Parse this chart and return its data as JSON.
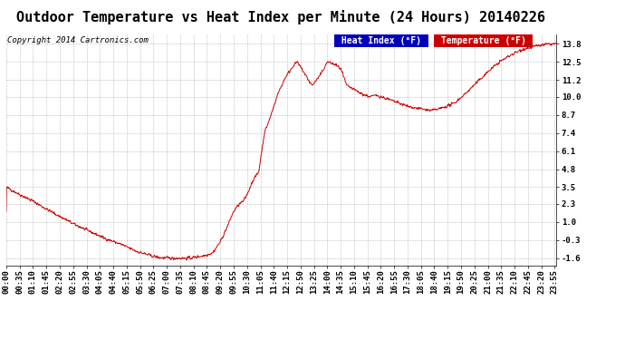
{
  "title": "Outdoor Temperature vs Heat Index per Minute (24 Hours) 20140226",
  "copyright": "Copyright 2014 Cartronics.com",
  "legend_heat_index": "Heat Index (°F)",
  "legend_temperature": "Temperature (°F)",
  "yticks": [
    13.8,
    12.5,
    11.2,
    10.0,
    8.7,
    7.4,
    6.1,
    4.8,
    3.5,
    2.3,
    1.0,
    -0.3,
    -1.6
  ],
  "ylim": [
    -2.1,
    14.5
  ],
  "background_color": "#ffffff",
  "plot_bg_color": "#ffffff",
  "grid_color": "#aaaaaa",
  "line_color": "#cc0000",
  "title_fontsize": 11,
  "copyright_fontsize": 6.5,
  "tick_fontsize": 6.5,
  "legend_fontsize": 7,
  "xtick_interval_minutes": 35,
  "total_minutes": 1440,
  "keyframes_x": [
    0,
    20,
    40,
    70,
    100,
    140,
    180,
    220,
    260,
    300,
    340,
    370,
    390,
    400,
    415,
    430,
    450,
    460,
    470,
    480,
    490,
    500,
    510,
    520,
    530,
    540,
    550,
    560,
    570,
    580,
    590,
    600,
    610,
    620,
    630,
    645,
    660,
    675,
    690,
    710,
    730,
    750,
    760,
    775,
    790,
    800,
    820,
    840,
    860,
    875,
    890,
    910,
    930,
    950,
    970,
    990,
    1010,
    1030,
    1050,
    1070,
    1090,
    1110,
    1130,
    1150,
    1170,
    1200,
    1230,
    1260,
    1290,
    1320,
    1350,
    1380,
    1410,
    1439
  ],
  "keyframes_y": [
    3.5,
    3.2,
    2.9,
    2.5,
    2.0,
    1.4,
    0.8,
    0.3,
    -0.2,
    -0.6,
    -1.1,
    -1.35,
    -1.5,
    -1.55,
    -1.58,
    -1.6,
    -1.6,
    -1.6,
    -1.6,
    -1.58,
    -1.55,
    -1.5,
    -1.45,
    -1.4,
    -1.3,
    -1.2,
    -0.8,
    -0.4,
    0.2,
    0.8,
    1.5,
    2.0,
    2.3,
    2.5,
    3.0,
    4.0,
    4.6,
    7.4,
    8.5,
    10.2,
    11.4,
    12.2,
    12.5,
    11.9,
    11.2,
    10.8,
    11.5,
    12.5,
    12.3,
    12.0,
    10.8,
    10.5,
    10.2,
    10.0,
    10.1,
    9.9,
    9.7,
    9.5,
    9.3,
    9.2,
    9.1,
    9.0,
    9.1,
    9.3,
    9.5,
    10.2,
    11.0,
    11.8,
    12.5,
    13.0,
    13.4,
    13.6,
    13.75,
    13.8
  ]
}
